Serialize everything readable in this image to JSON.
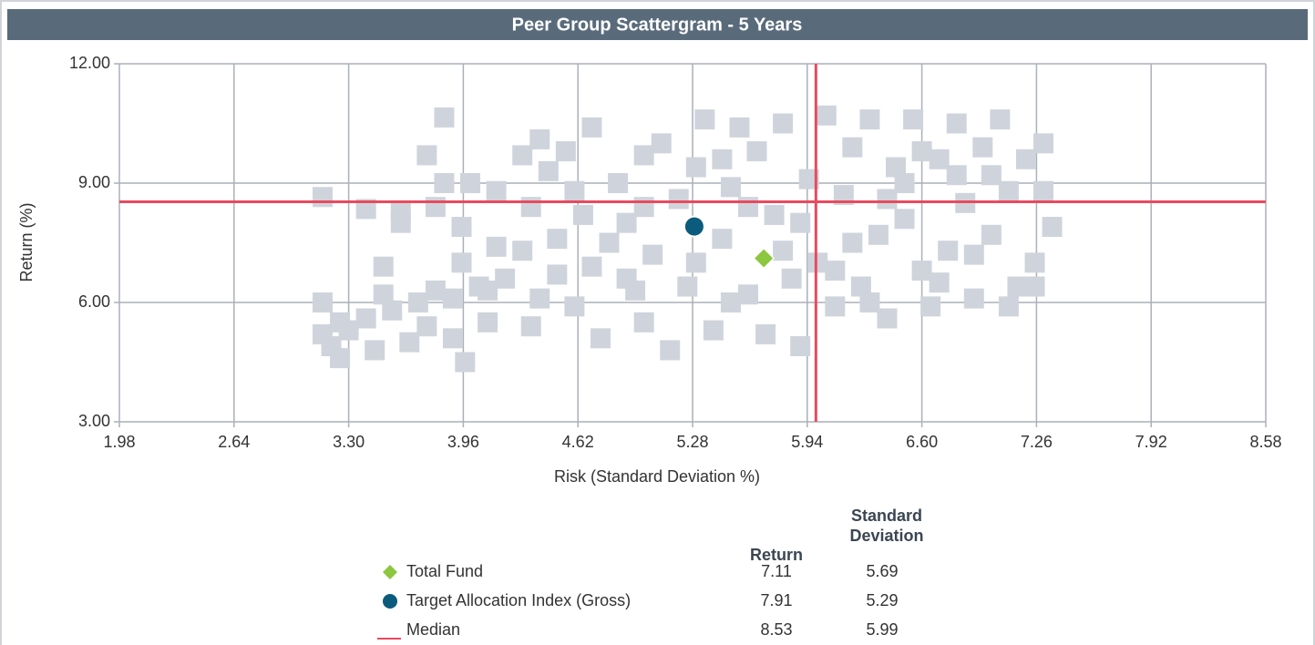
{
  "chart_data": {
    "type": "scatter",
    "title": "Peer Group Scattergram - 5 Years",
    "xlabel": "Risk (Standard Deviation %)",
    "ylabel": "Return (%)",
    "xlim": [
      1.98,
      8.58
    ],
    "ylim": [
      3,
      12
    ],
    "xticks": [
      1.98,
      2.64,
      {
        "value": 3.3,
        "label": "3.30"
      },
      3.96,
      4.62,
      5.28,
      5.94,
      {
        "value": 6.6,
        "label": "6.60"
      },
      7.26,
      7.92,
      8.58
    ],
    "yticks": [
      {
        "value": 3,
        "label": "3.00"
      },
      {
        "value": 6,
        "label": "6.00"
      },
      {
        "value": 9,
        "label": "9.00"
      },
      {
        "value": 12,
        "label": "12.00"
      }
    ],
    "grid": true,
    "legend_columns": [
      "Return",
      "Standard Deviation"
    ],
    "series": [
      {
        "color": "#cfd4dc",
        "marker": "square",
        "x": [
          3.15,
          3.15,
          3.15,
          3.2,
          3.25,
          3.25,
          3.3,
          3.4,
          3.4,
          3.45,
          3.5,
          3.5,
          3.55,
          3.6,
          3.6,
          3.65,
          3.7,
          3.75,
          3.75,
          3.8,
          3.8,
          3.85,
          3.85,
          3.9,
          3.95,
          3.95,
          4.0,
          4.05,
          4.1,
          4.15,
          4.15,
          4.2,
          3.97,
          4.3,
          4.35,
          4.35,
          4.4,
          4.45,
          4.5,
          4.5,
          4.55,
          4.6,
          4.65,
          4.7,
          4.7,
          4.75,
          4.8,
          4.85,
          4.9,
          4.95,
          5.0,
          5.0,
          5.05,
          5.1,
          5.15,
          5.2,
          5.25,
          5.3,
          5.35,
          5.4,
          5.45,
          5.5,
          5.55,
          5.6,
          5.65,
          5.7,
          5.75,
          5.8,
          5.85,
          5.9,
          5.95,
          6.0,
          6.05,
          6.1,
          6.15,
          6.2,
          6.25,
          6.3,
          6.35,
          6.4,
          6.45,
          6.5,
          6.55,
          6.6,
          6.65,
          6.7,
          6.75,
          6.8,
          6.85,
          6.9,
          6.95,
          7.0,
          7.05,
          7.1,
          7.15,
          7.2,
          7.25,
          7.3,
          7.3,
          7.35,
          7.25,
          7.1,
          5.45,
          5.6,
          5.9,
          6.2,
          6.5,
          6.8,
          4.3,
          4.6,
          5.0,
          5.3,
          5.8,
          6.1,
          6.4,
          6.6,
          6.9,
          7.0,
          4.9,
          5.5,
          6.3,
          6.7,
          4.4,
          4.1,
          3.9
        ],
        "values": [
          8.65,
          6.0,
          5.2,
          4.9,
          5.5,
          4.6,
          5.3,
          8.35,
          5.6,
          4.8,
          6.9,
          6.2,
          5.8,
          8.3,
          8.0,
          5.0,
          6.0,
          9.7,
          5.4,
          8.4,
          6.3,
          10.65,
          9.0,
          5.1,
          7.0,
          7.9,
          9.0,
          6.4,
          5.5,
          8.8,
          7.4,
          6.6,
          4.5,
          7.3,
          8.4,
          5.4,
          10.1,
          9.3,
          6.7,
          7.6,
          9.8,
          5.9,
          8.2,
          10.4,
          6.9,
          5.1,
          7.5,
          9.0,
          8.0,
          6.3,
          9.7,
          5.5,
          7.2,
          10.0,
          4.8,
          8.6,
          6.4,
          9.4,
          10.6,
          5.3,
          7.6,
          8.9,
          10.4,
          6.2,
          9.8,
          5.2,
          8.2,
          10.5,
          6.6,
          4.9,
          9.1,
          7.0,
          10.7,
          5.9,
          8.7,
          9.9,
          6.4,
          10.6,
          7.7,
          5.6,
          9.4,
          8.1,
          10.6,
          6.8,
          5.9,
          9.6,
          7.3,
          10.5,
          8.5,
          6.1,
          9.9,
          7.7,
          10.6,
          8.8,
          6.4,
          9.6,
          7.0,
          10.0,
          8.8,
          7.9,
          6.4,
          5.9,
          9.6,
          8.4,
          8.0,
          7.5,
          9.0,
          9.2,
          9.7,
          8.8,
          8.4,
          7.0,
          7.3,
          6.8,
          8.6,
          9.8,
          7.2,
          9.2,
          6.6,
          6.0,
          6.0,
          6.5,
          6.1,
          6.3,
          6.1
        ]
      },
      {
        "name": "Total Fund",
        "color": "#8dc63f",
        "marker": "diamond",
        "x": [
          5.69
        ],
        "values": [
          7.11
        ]
      },
      {
        "name": "Target Allocation Index (Gross)",
        "color": "#0b5b7c",
        "marker": "circle",
        "x": [
          5.29
        ],
        "values": [
          7.91
        ]
      }
    ],
    "median": {
      "name": "Median",
      "color": "#e94a5e",
      "x": 5.99,
      "y": 8.53
    }
  }
}
